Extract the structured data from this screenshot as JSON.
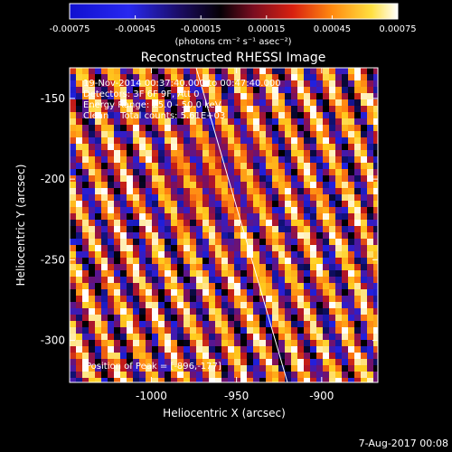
{
  "colorbar": {
    "ticks": [
      "-0.00075",
      "-0.00045",
      "-0.00015",
      "0.00015",
      "0.00045",
      "0.00075"
    ],
    "unit_label": "(photons cm⁻² s⁻¹ asec⁻²)"
  },
  "title": "Reconstructed RHESSI Image",
  "info": {
    "line1": "19-Nov-2014 00:37:40.000 to 00:47:40.000",
    "line2": "Detectors: 3F 6F 9F, Att 0",
    "line3": "Energy Range: 25.0 - 50.0 keV",
    "line4": "Clean    Total counts: 5.61E+03"
  },
  "peak_label": "Position of Peak = [-896,-177]",
  "axes": {
    "xlabel": "Heliocentric X (arcsec)",
    "ylabel": "Heliocentric Y (arcsec)",
    "xticks": [
      "-1000",
      "-950",
      "-900"
    ],
    "yticks": [
      "-150",
      "-200",
      "-250",
      "-300"
    ],
    "xlim": [
      -1048,
      -867
    ],
    "ylim": [
      -326,
      -131
    ]
  },
  "footer_date": "7-Aug-2017 00:08",
  "colors": {
    "background": "#000000",
    "limb_line": "#ffffff",
    "colormap": [
      "#000000",
      "#2020e0",
      "#7a1060",
      "#c01818",
      "#ff7a10",
      "#ffd020",
      "#ffffff"
    ]
  }
}
